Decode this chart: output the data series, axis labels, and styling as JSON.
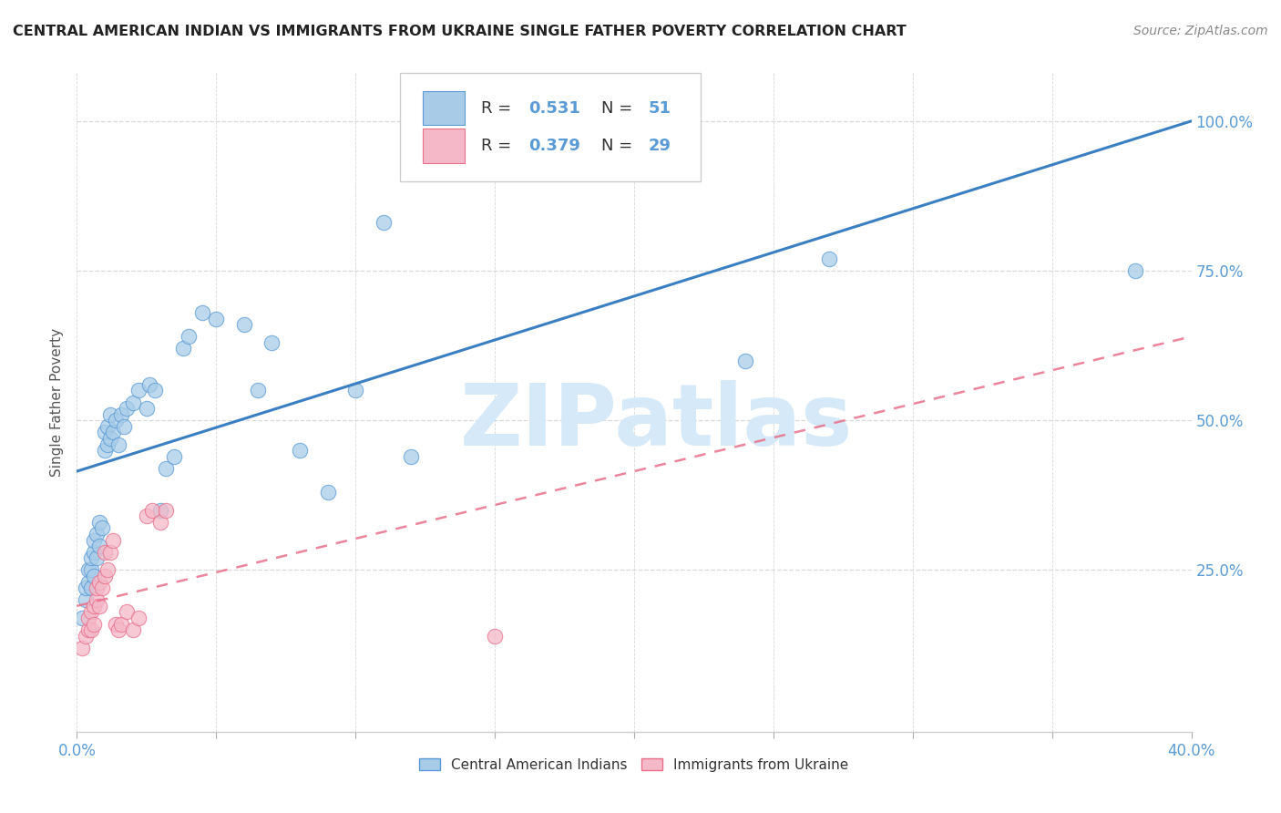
{
  "title": "CENTRAL AMERICAN INDIAN VS IMMIGRANTS FROM UKRAINE SINGLE FATHER POVERTY CORRELATION CHART",
  "source": "Source: ZipAtlas.com",
  "ylabel": "Single Father Poverty",
  "yticks_labels": [
    "25.0%",
    "50.0%",
    "75.0%",
    "100.0%"
  ],
  "ytick_vals": [
    0.25,
    0.5,
    0.75,
    1.0
  ],
  "xlim": [
    0.0,
    0.4
  ],
  "ylim": [
    -0.02,
    1.08
  ],
  "legend_r1": "0.531",
  "legend_n1": "51",
  "legend_r2": "0.379",
  "legend_n2": "29",
  "blue_color": "#a8cce8",
  "pink_color": "#f4b8c8",
  "blue_edge_color": "#5b9bd5",
  "pink_edge_color": "#e8708a",
  "blue_line_color": "#3a7fc1",
  "pink_line_color": "#e8708a",
  "axis_label_color": "#5b9bd5",
  "grid_color": "#d8d8d8",
  "watermark_color": "#d6e9f8",
  "watermark_text": "ZIPatlas",
  "blue_line_x": [
    0.0,
    0.4
  ],
  "blue_line_y": [
    0.415,
    1.0
  ],
  "pink_line_x": [
    0.0,
    0.4
  ],
  "pink_line_y": [
    0.19,
    0.64
  ],
  "blue_scatter_x": [
    0.002,
    0.003,
    0.003,
    0.004,
    0.004,
    0.005,
    0.005,
    0.005,
    0.006,
    0.006,
    0.006,
    0.007,
    0.007,
    0.008,
    0.008,
    0.009,
    0.01,
    0.01,
    0.011,
    0.011,
    0.012,
    0.012,
    0.013,
    0.014,
    0.015,
    0.016,
    0.017,
    0.018,
    0.02,
    0.022,
    0.025,
    0.026,
    0.028,
    0.03,
    0.032,
    0.035,
    0.038,
    0.04,
    0.045,
    0.05,
    0.06,
    0.065,
    0.07,
    0.08,
    0.09,
    0.1,
    0.11,
    0.12,
    0.24,
    0.27,
    0.38
  ],
  "blue_scatter_y": [
    0.17,
    0.2,
    0.22,
    0.23,
    0.25,
    0.22,
    0.25,
    0.27,
    0.24,
    0.28,
    0.3,
    0.27,
    0.31,
    0.29,
    0.33,
    0.32,
    0.45,
    0.48,
    0.46,
    0.49,
    0.47,
    0.51,
    0.48,
    0.5,
    0.46,
    0.51,
    0.49,
    0.52,
    0.53,
    0.55,
    0.52,
    0.56,
    0.55,
    0.35,
    0.42,
    0.44,
    0.62,
    0.64,
    0.68,
    0.67,
    0.66,
    0.55,
    0.63,
    0.45,
    0.38,
    0.55,
    0.83,
    0.44,
    0.6,
    0.77,
    0.75
  ],
  "pink_scatter_x": [
    0.002,
    0.003,
    0.004,
    0.004,
    0.005,
    0.005,
    0.006,
    0.006,
    0.007,
    0.007,
    0.008,
    0.008,
    0.009,
    0.01,
    0.01,
    0.011,
    0.012,
    0.013,
    0.014,
    0.015,
    0.016,
    0.018,
    0.02,
    0.022,
    0.025,
    0.027,
    0.03,
    0.032,
    0.15
  ],
  "pink_scatter_y": [
    0.12,
    0.14,
    0.15,
    0.17,
    0.15,
    0.18,
    0.16,
    0.19,
    0.2,
    0.22,
    0.19,
    0.23,
    0.22,
    0.24,
    0.28,
    0.25,
    0.28,
    0.3,
    0.16,
    0.15,
    0.16,
    0.18,
    0.15,
    0.17,
    0.34,
    0.35,
    0.33,
    0.35,
    0.14
  ]
}
